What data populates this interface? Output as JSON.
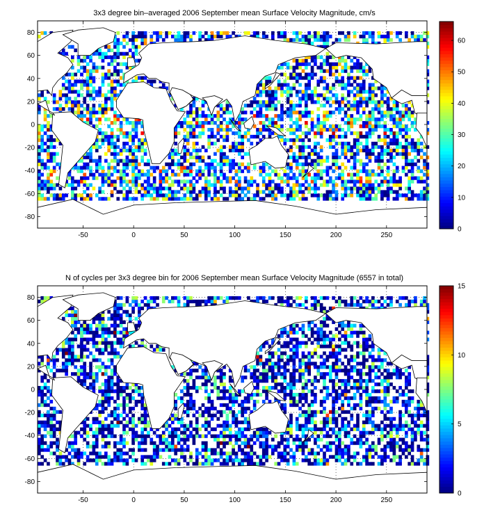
{
  "chart_data": [
    {
      "type": "heatmap",
      "title": "3x3 degree bin–averaged 2006 September mean Surface Velocity Magnitude, cm/s",
      "xlabel": "",
      "ylabel": "",
      "xlim": [
        -95,
        290
      ],
      "ylim": [
        -90,
        90
      ],
      "x_ticks": [
        -50,
        0,
        50,
        100,
        150,
        200,
        250
      ],
      "y_ticks": [
        80,
        60,
        40,
        20,
        0,
        -20,
        -40,
        -60,
        -80
      ],
      "colorbar": {
        "min": 0,
        "max": 66,
        "ticks": [
          0,
          10,
          20,
          30,
          40,
          50,
          60
        ]
      },
      "colormap": "jet",
      "grid": true,
      "bin_size_deg": 3,
      "seed": 7
    },
    {
      "type": "heatmap",
      "title": "N of cycles per 3x3 degree bin for 2006 September mean Surface Velocity Magnitude (6557 in total)",
      "xlabel": "",
      "ylabel": "",
      "xlim": [
        -95,
        290
      ],
      "ylim": [
        -90,
        90
      ],
      "x_ticks": [
        -50,
        0,
        50,
        100,
        150,
        200,
        250
      ],
      "y_ticks": [
        80,
        60,
        40,
        20,
        0,
        -20,
        -40,
        -60,
        -80
      ],
      "colorbar": {
        "min": 0,
        "max": 15,
        "ticks": [
          0,
          5,
          10,
          15
        ]
      },
      "colormap": "jet",
      "grid": true,
      "bin_size_deg": 3,
      "seed": 13
    }
  ]
}
